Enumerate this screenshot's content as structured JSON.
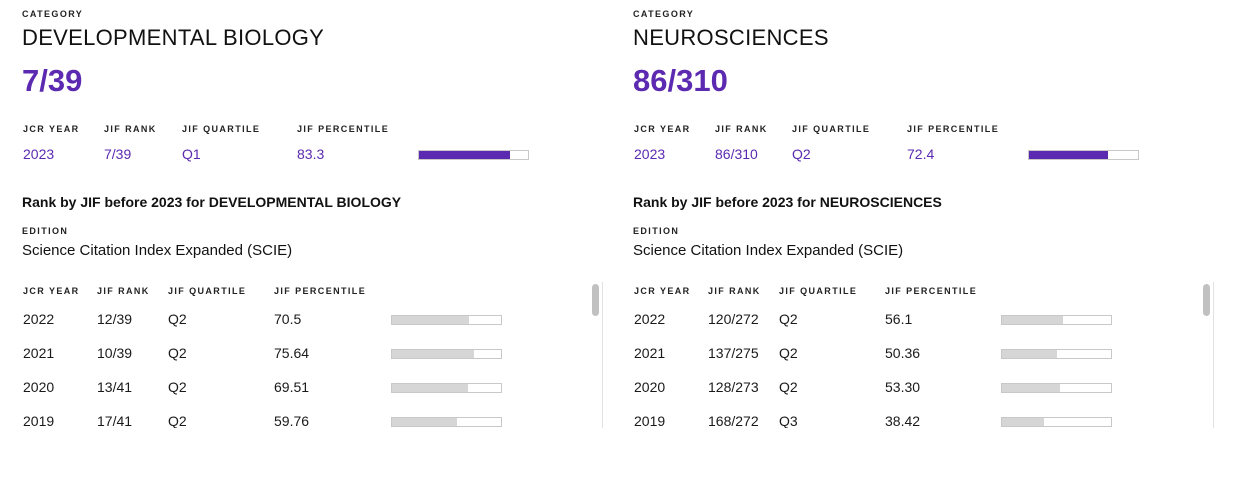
{
  "panels": [
    {
      "category_label": "CATEGORY",
      "category_name": "DEVELOPMENTAL BIOLOGY",
      "rank": "7/39",
      "headers": {
        "jcr_year": "JCR YEAR",
        "jif_rank": "JIF RANK",
        "jif_quartile": "JIF QUARTILE",
        "jif_percentile": "JIF PERCENTILE"
      },
      "current": {
        "year": "2023",
        "rank": "7/39",
        "quartile": "Q1",
        "percentile": "83.3"
      },
      "history_title": "Rank by JIF before 2023 for DEVELOPMENTAL BIOLOGY",
      "edition_label": "EDITION",
      "edition": "Science Citation Index Expanded (SCIE)",
      "history": [
        {
          "year": "2022",
          "rank": "12/39",
          "quartile": "Q2",
          "percentile": "70.5"
        },
        {
          "year": "2021",
          "rank": "10/39",
          "quartile": "Q2",
          "percentile": "75.64"
        },
        {
          "year": "2020",
          "rank": "13/41",
          "quartile": "Q2",
          "percentile": "69.51"
        },
        {
          "year": "2019",
          "rank": "17/41",
          "quartile": "Q2",
          "percentile": "59.76"
        }
      ]
    },
    {
      "category_label": "CATEGORY",
      "category_name": "NEUROSCIENCES",
      "rank": "86/310",
      "headers": {
        "jcr_year": "JCR YEAR",
        "jif_rank": "JIF RANK",
        "jif_quartile": "JIF QUARTILE",
        "jif_percentile": "JIF PERCENTILE"
      },
      "current": {
        "year": "2023",
        "rank": "86/310",
        "quartile": "Q2",
        "percentile": "72.4"
      },
      "history_title": "Rank by JIF before 2023 for NEUROSCIENCES",
      "edition_label": "EDITION",
      "edition": "Science Citation Index Expanded (SCIE)",
      "history": [
        {
          "year": "2022",
          "rank": "120/272",
          "quartile": "Q2",
          "percentile": "56.1"
        },
        {
          "year": "2021",
          "rank": "137/275",
          "quartile": "Q2",
          "percentile": "50.36"
        },
        {
          "year": "2020",
          "rank": "128/273",
          "quartile": "Q2",
          "percentile": "53.30"
        },
        {
          "year": "2019",
          "rank": "168/272",
          "quartile": "Q3",
          "percentile": "38.42"
        }
      ]
    }
  ],
  "colors": {
    "accent": "#5b2ab0",
    "bar_fill_history": "#d6d6d6",
    "bar_border": "#c8c8c8"
  }
}
